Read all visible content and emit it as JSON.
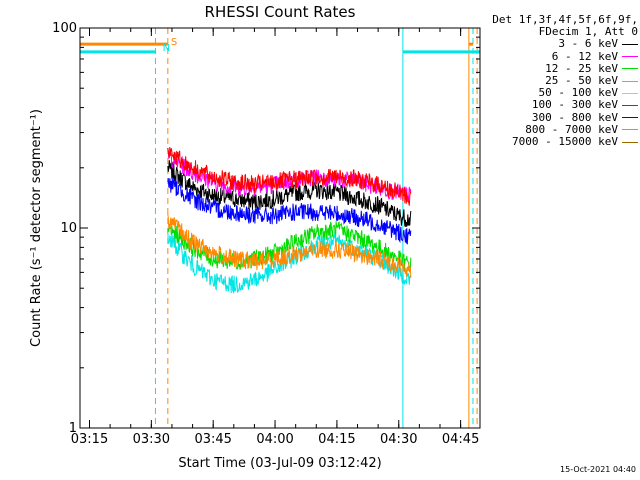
{
  "chart_data": {
    "type": "line",
    "title": "RHESSI Count Rates",
    "xlabel": "Start Time (03-Jul-09 03:12:42)",
    "ylabel": "Count Rate (s⁻¹ detector segment⁻¹)",
    "yscale": "log",
    "ylim": [
      1,
      100
    ],
    "xlim_minutes_after_03_12_42": [
      0,
      97
    ],
    "x_ticks": [
      "03:15",
      "03:30",
      "03:45",
      "04:00",
      "04:15",
      "04:30",
      "04:45"
    ],
    "y_ticks": [
      "1",
      "10",
      "100"
    ],
    "legend_header": [
      "Det 1f,3f,4f,5f,6f,9f,",
      "FDecim 1, Att 0"
    ],
    "legend_placement": "right-outside",
    "series": [
      {
        "name": "3 - 6 keV",
        "color": "#000000",
        "x": [
          "03:34",
          "03:40",
          "03:45",
          "03:50",
          "03:55",
          "04:00",
          "04:05",
          "04:10",
          "04:15",
          "04:20",
          "04:25",
          "04:30",
          "04:33"
        ],
        "values": [
          20,
          16,
          14.5,
          14,
          13.5,
          14,
          15,
          15.5,
          15,
          14,
          13,
          11.5,
          11
        ]
      },
      {
        "name": "6 - 12 keV",
        "color": "#ff00ff",
        "x": [
          "03:34",
          "03:40",
          "03:45",
          "03:50",
          "03:55",
          "04:00",
          "04:05",
          "04:10",
          "04:15",
          "04:20",
          "04:25",
          "04:30",
          "04:33"
        ],
        "values": [
          23,
          19,
          17,
          16,
          16,
          16.5,
          17.5,
          18,
          17.5,
          17,
          16,
          15,
          14.5
        ]
      },
      {
        "name": "12 - 25 keV",
        "color": "#00dd00",
        "x": [
          "03:34",
          "03:40",
          "03:45",
          "03:50",
          "03:55",
          "04:00",
          "04:05",
          "04:10",
          "04:15",
          "04:20",
          "04:25",
          "04:30",
          "04:33"
        ],
        "values": [
          10,
          8,
          7,
          6.8,
          7,
          7.5,
          8.5,
          9.5,
          9.8,
          9,
          8,
          7,
          6.5
        ]
      },
      {
        "name": "25 - 50 keV",
        "color": "#00e5e5",
        "x": [
          "03:34",
          "03:40",
          "03:45",
          "03:50",
          "03:55",
          "04:00",
          "04:05",
          "04:10",
          "04:15",
          "04:20",
          "04:25",
          "04:30",
          "04:33"
        ],
        "values": [
          9,
          6.5,
          5.5,
          5.2,
          5.5,
          6.2,
          7.2,
          8.3,
          8.5,
          7.8,
          7,
          6,
          5.5
        ]
      },
      {
        "name": "50 - 100 keV",
        "color": "#e6d200",
        "x": [
          "03:34",
          "04:33"
        ],
        "values": [
          null,
          null
        ]
      },
      {
        "name": "100 - 300 keV",
        "color": "#ff0000",
        "x": [
          "03:34",
          "03:40",
          "03:45",
          "03:50",
          "03:55",
          "04:00",
          "04:05",
          "04:10",
          "04:15",
          "04:20",
          "04:25",
          "04:30",
          "04:33"
        ],
        "values": [
          24,
          20,
          18,
          17,
          16.5,
          17,
          17.5,
          18,
          18,
          17.5,
          16.5,
          15,
          14
        ]
      },
      {
        "name": "300 - 800 keV",
        "color": "#0000ff",
        "x": [
          "03:34",
          "03:40",
          "03:45",
          "03:50",
          "03:55",
          "04:00",
          "04:05",
          "04:10",
          "04:15",
          "04:20",
          "04:25",
          "04:30",
          "04:33"
        ],
        "values": [
          17,
          14,
          12.5,
          12,
          11.5,
          11.5,
          12,
          12,
          11.8,
          11.2,
          10.5,
          9.5,
          9
        ]
      },
      {
        "name": "800 - 7000 keV",
        "color": "#ff8800",
        "x": [
          "03:34",
          "03:40",
          "03:45",
          "03:50",
          "03:55",
          "04:00",
          "04:05",
          "04:10",
          "04:15",
          "04:20",
          "04:25",
          "04:30",
          "04:33"
        ],
        "values": [
          11,
          8.5,
          7.5,
          7,
          6.8,
          7,
          7.4,
          7.8,
          7.8,
          7.4,
          7,
          6.5,
          6.2
        ]
      },
      {
        "name": "7000 - 15000 keV",
        "color": "#996600",
        "x": [
          "03:34",
          "04:33"
        ],
        "values": [
          null,
          null
        ]
      }
    ],
    "annotations": [
      {
        "text": "S",
        "color": "#ff8800",
        "x": "03:34"
      },
      {
        "text": "N",
        "color": "#00e5e5",
        "x": "03:32"
      }
    ],
    "flag_bars": [
      {
        "color": "#ff8800",
        "level": 83,
        "ranges": [
          [
            "03:12:42",
            "03:34"
          ],
          [
            "04:47",
            "04:48"
          ]
        ]
      },
      {
        "color": "#00e5e5",
        "level": 76,
        "ranges": [
          [
            "03:12:42",
            "03:31"
          ],
          [
            "04:31",
            "04:49:42"
          ]
        ]
      }
    ],
    "vertical_markers": [
      {
        "color": "#00e5e5",
        "style": "solid",
        "x": "03:12:42"
      },
      {
        "color": "#00e5e5",
        "style": "dashed",
        "x": "03:31"
      },
      {
        "color": "#ff8800",
        "style": "dashed",
        "x": "03:34"
      },
      {
        "color": "#00e5e5",
        "style": "solid",
        "x": "04:31"
      },
      {
        "color": "#ff8800",
        "style": "solid",
        "x": "04:47"
      },
      {
        "color": "#00e5e5",
        "style": "dashed",
        "x": "04:48"
      },
      {
        "color": "#ff8800",
        "style": "dashed",
        "x": "04:49"
      }
    ]
  },
  "footer": {
    "timestamp": "15-Oct-2021 04:40"
  }
}
